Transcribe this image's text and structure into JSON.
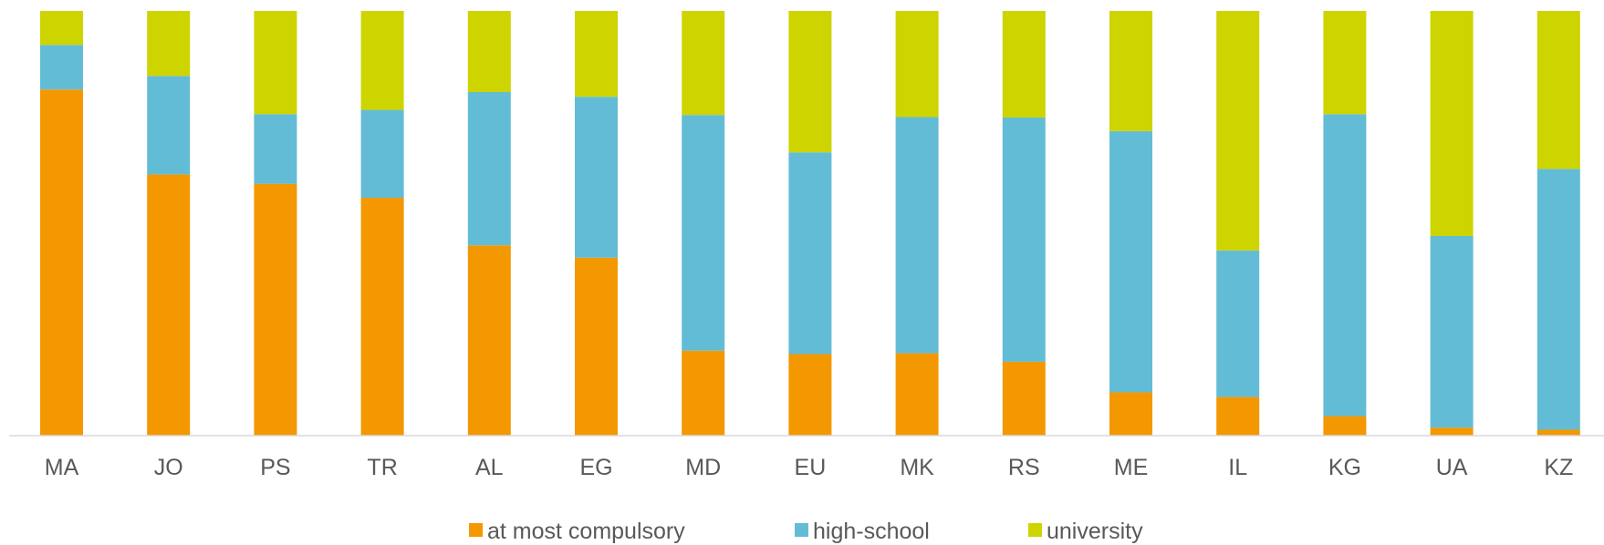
{
  "chart_data": {
    "type": "bar",
    "stacked": true,
    "percent": true,
    "categories": [
      "MA",
      "JO",
      "PS",
      "TR",
      "AL",
      "EG",
      "MD",
      "EU",
      "MK",
      "RS",
      "ME",
      "IL",
      "KG",
      "UA",
      "KZ"
    ],
    "series": [
      {
        "name": "at most compulsory",
        "color": "#f39800",
        "values": [
          81.5,
          61.5,
          59.3,
          56.0,
          44.8,
          41.9,
          20.0,
          19.2,
          19.4,
          17.4,
          10.2,
          9.1,
          4.6,
          1.9,
          1.4
        ]
      },
      {
        "name": "high-school",
        "color": "#63bcd6",
        "values": [
          10.5,
          23.2,
          16.4,
          20.7,
          36.1,
          37.9,
          55.5,
          47.5,
          55.6,
          57.5,
          61.5,
          34.5,
          71.1,
          45.1,
          61.4
        ]
      },
      {
        "name": "university",
        "color": "#cdd400",
        "values": [
          8.0,
          15.3,
          24.3,
          23.3,
          19.1,
          20.2,
          24.5,
          33.3,
          25.0,
          25.1,
          28.3,
          56.4,
          24.3,
          53.0,
          37.2
        ]
      }
    ],
    "ylim": [
      0,
      100
    ],
    "legend_position": "bottom",
    "grid": false
  }
}
